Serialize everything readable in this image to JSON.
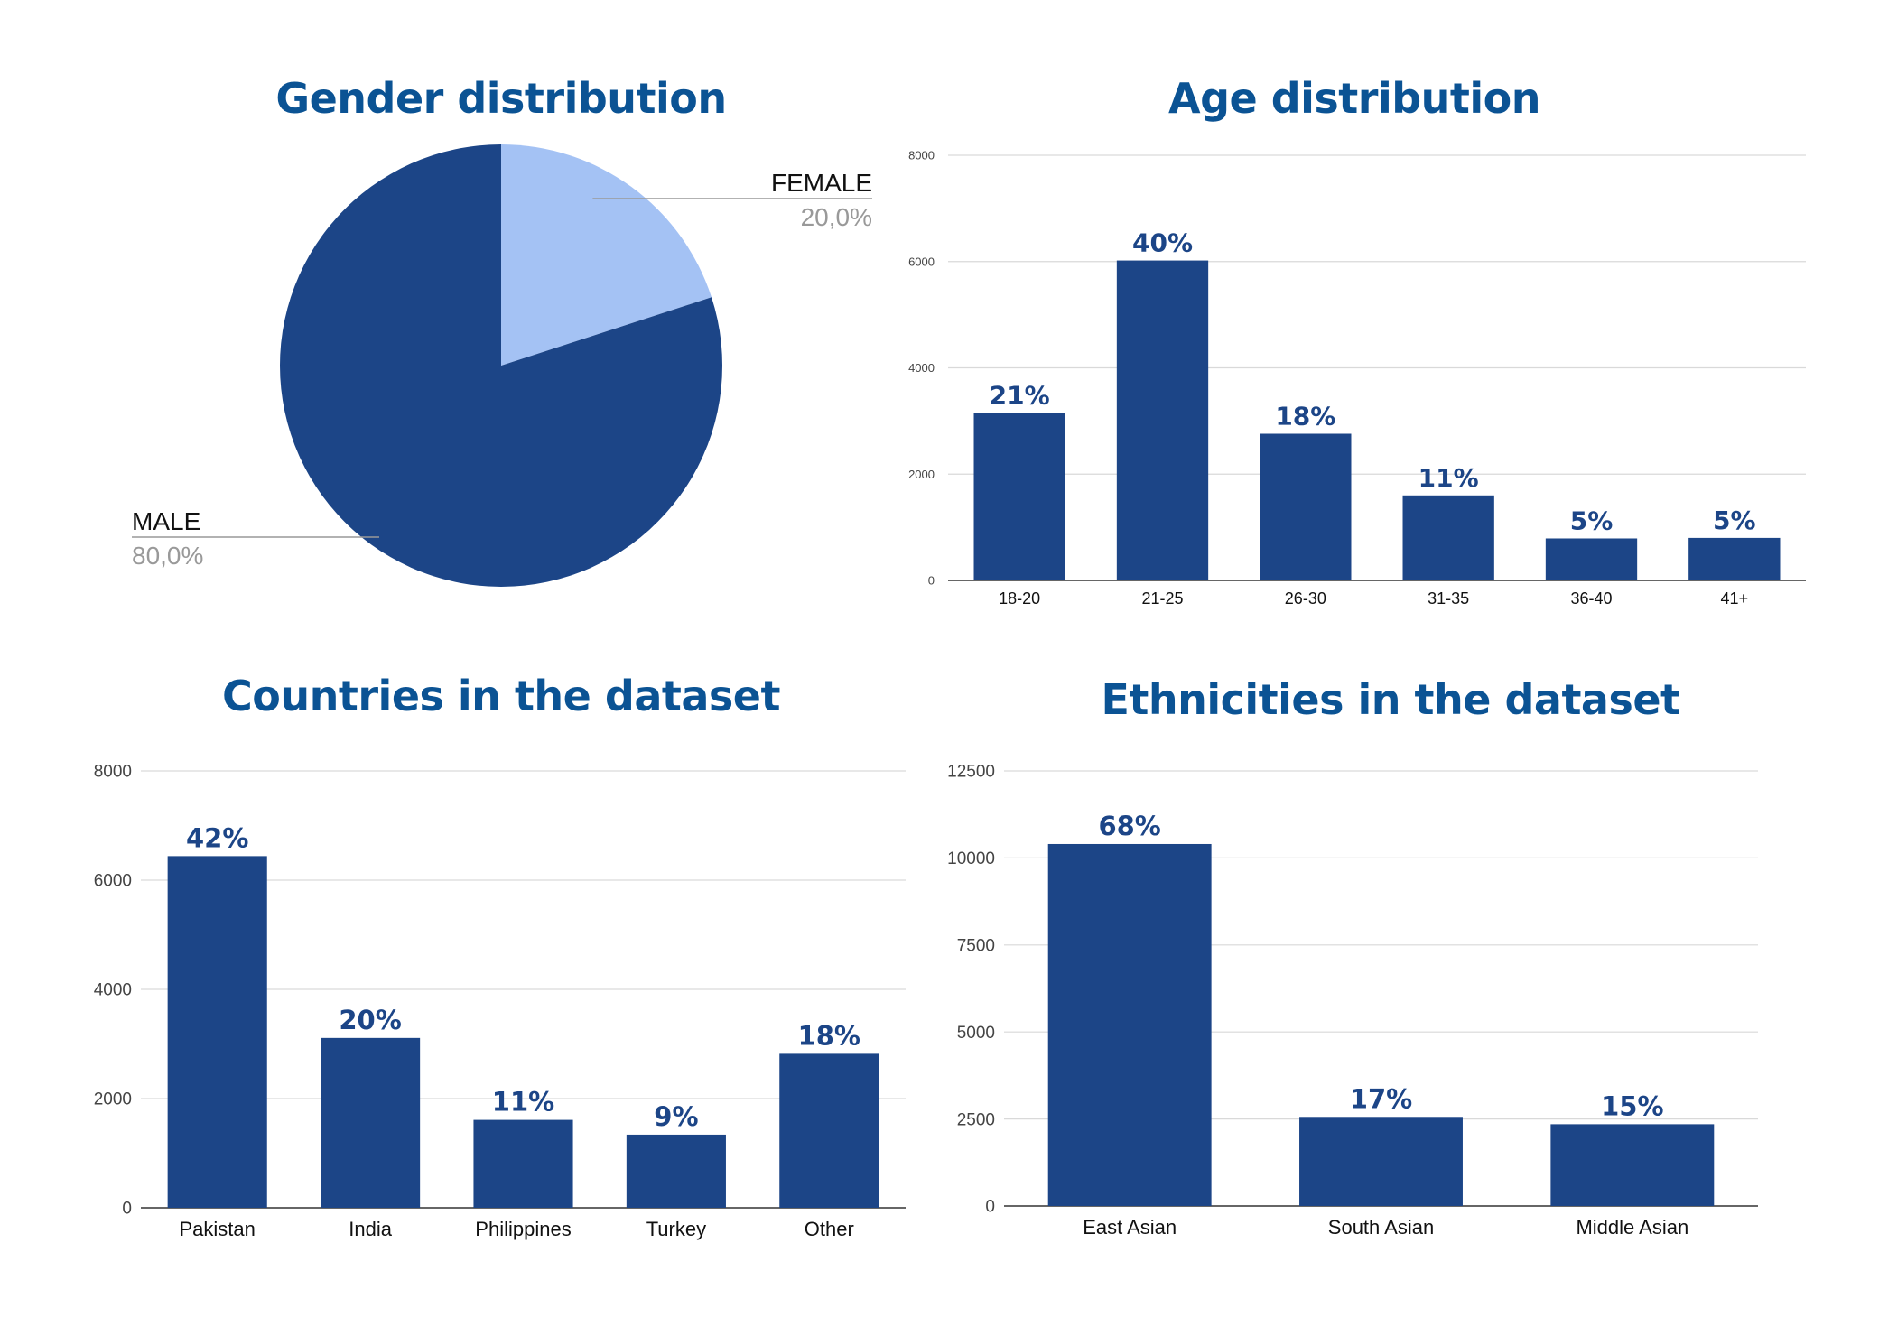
{
  "colors": {
    "bar": "#1c4587",
    "pie_dark": "#1c4587",
    "pie_light": "#a4c2f4",
    "title": "#0b5394",
    "grid": "#d9d9d9"
  },
  "chart_data": [
    {
      "type": "pie",
      "title": "Gender distribution",
      "slices": [
        {
          "label": "FEMALE",
          "value": 20.0,
          "display": "20,0%",
          "color": "#a4c2f4"
        },
        {
          "label": "MALE",
          "value": 80.0,
          "display": "80,0%",
          "color": "#1c4587"
        }
      ]
    },
    {
      "type": "bar",
      "title": "Age distribution",
      "categories": [
        "18-20",
        "21-25",
        "26-30",
        "31-35",
        "36-40",
        "41+"
      ],
      "values": [
        3150,
        6020,
        2760,
        1600,
        790,
        800
      ],
      "data_labels": [
        "21%",
        "40%",
        "18%",
        "11%",
        "5%",
        "5%"
      ],
      "yticks": [
        0,
        2000,
        4000,
        6000,
        8000
      ],
      "ylim": [
        0,
        8000
      ],
      "grid": true
    },
    {
      "type": "bar",
      "title": "Countries in the dataset",
      "categories": [
        "Pakistan",
        "India",
        "Philippines",
        "Turkey",
        "Other"
      ],
      "values": [
        6440,
        3110,
        1610,
        1340,
        2820
      ],
      "data_labels": [
        "42%",
        "20%",
        "11%",
        "9%",
        "18%"
      ],
      "yticks": [
        0,
        2000,
        4000,
        6000,
        8000
      ],
      "ylim": [
        0,
        8000
      ],
      "grid": true
    },
    {
      "type": "bar",
      "title": "Ethnicities in the dataset",
      "categories": [
        "East Asian",
        "South Asian",
        "Middle Asian"
      ],
      "values": [
        10400,
        2560,
        2350
      ],
      "data_labels": [
        "68%",
        "17%",
        "15%"
      ],
      "yticks": [
        0,
        2500,
        5000,
        7500,
        10000,
        12500
      ],
      "ylim": [
        0,
        12500
      ],
      "grid": true
    }
  ]
}
